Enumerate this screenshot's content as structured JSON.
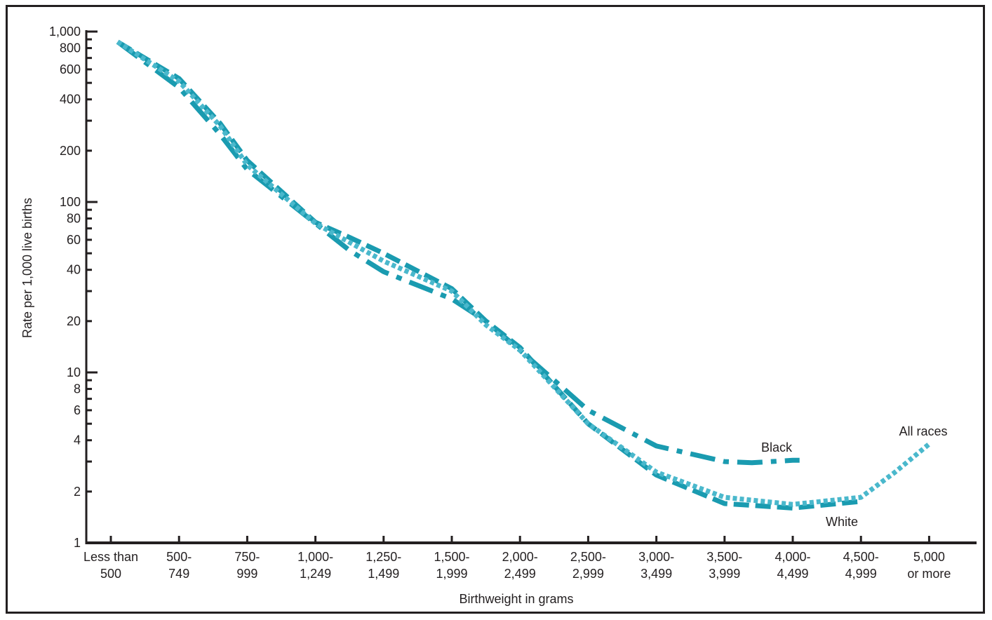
{
  "chart_data": {
    "type": "line",
    "xlabel": "Birthweight in grams",
    "ylabel": "Rate  per 1,000 live births",
    "yscale": "log",
    "ylim": [
      1,
      1000
    ],
    "grid": false,
    "categories": [
      [
        "Less than",
        "500"
      ],
      [
        "500-",
        "749"
      ],
      [
        "750-",
        "999"
      ],
      [
        "1,000-",
        "1,249"
      ],
      [
        "1,250-",
        "1,499"
      ],
      [
        "1,500-",
        "1,999"
      ],
      [
        "2,000-",
        "2,499"
      ],
      [
        "2,500-",
        "2,999"
      ],
      [
        "3,000-",
        "3,499"
      ],
      [
        "3,500-",
        "3,999"
      ],
      [
        "4,000-",
        "4,499"
      ],
      [
        "4,500-",
        "4,999"
      ],
      [
        "5,000",
        "or more"
      ]
    ],
    "y_tick_labels": [
      {
        "value": 1000,
        "label": "1,000"
      },
      {
        "value": 800,
        "label": "800"
      },
      {
        "value": 600,
        "label": "600"
      },
      {
        "value": 400,
        "label": "400"
      },
      {
        "value": 200,
        "label": "200"
      },
      {
        "value": 100,
        "label": "100"
      },
      {
        "value": 80,
        "label": "80"
      },
      {
        "value": 60,
        "label": "60"
      },
      {
        "value": 40,
        "label": "40"
      },
      {
        "value": 20,
        "label": "20"
      },
      {
        "value": 10,
        "label": "10"
      },
      {
        "value": 8,
        "label": "8"
      },
      {
        "value": 6,
        "label": "6"
      },
      {
        "value": 4,
        "label": "4"
      },
      {
        "value": 2,
        "label": "2"
      },
      {
        "value": 1,
        "label": "1"
      }
    ],
    "y_minor_ticks": [
      900,
      700,
      500,
      300,
      90,
      70,
      50,
      30,
      9,
      7,
      5,
      3
    ],
    "series": [
      {
        "name": "Black",
        "style": "dash-dot",
        "color": "#1a9bb0",
        "x": [
          0.1,
          1,
          1.6,
          2,
          3,
          3.5,
          4,
          5,
          5.5,
          6,
          7,
          8,
          9,
          9.4,
          10,
          10.1
        ],
        "values": [
          870,
          470,
          250,
          155,
          75,
          52,
          39,
          27,
          20,
          13.5,
          6,
          3.7,
          3.0,
          2.95,
          3.05,
          3.05
        ]
      },
      {
        "name": "White",
        "style": "dashed",
        "color": "#1a9bb0",
        "x": [
          0.1,
          1,
          1.6,
          2,
          3,
          3.5,
          4,
          5,
          5.5,
          6,
          7,
          8,
          9,
          10,
          11
        ],
        "values": [
          870,
          530,
          290,
          175,
          76,
          62,
          50,
          31,
          20,
          14,
          5,
          2.5,
          1.7,
          1.6,
          1.75
        ]
      },
      {
        "name": "All races",
        "style": "dotted",
        "color": "#4ab8cc",
        "x": [
          0.1,
          1,
          1.6,
          2,
          3,
          3.5,
          4,
          5,
          5.5,
          6,
          7,
          8,
          9,
          10,
          11,
          11.5,
          12
        ],
        "values": [
          870,
          510,
          280,
          165,
          75,
          58,
          45,
          30,
          19,
          13.5,
          5,
          2.6,
          1.85,
          1.68,
          1.85,
          2.6,
          3.8
        ]
      }
    ]
  }
}
